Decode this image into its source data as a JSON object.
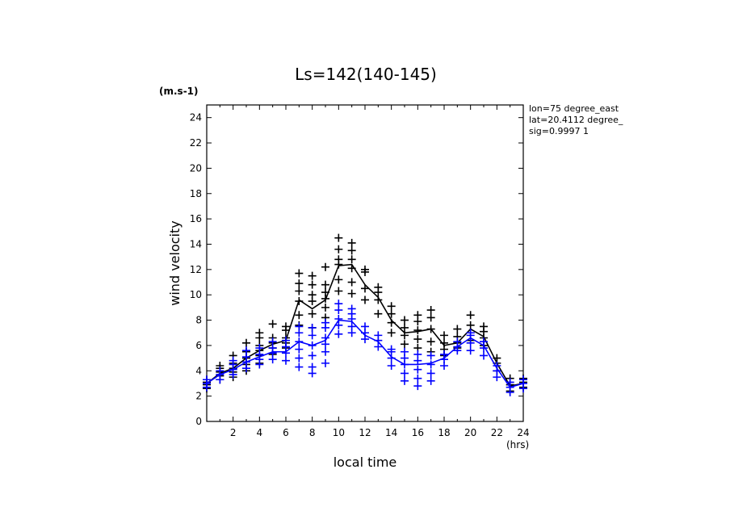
{
  "chart_data": {
    "type": "scatter",
    "title": "Ls=142(140-145)",
    "xlabel": "local time",
    "ylabel": "wind velocity",
    "y_unit": "(m.s-1)",
    "x_unit": "(hrs)",
    "info": [
      "lon=75 degree_east",
      "lat=20.4112 degree_",
      "sig=0.9997 1"
    ],
    "xlim": [
      0,
      24
    ],
    "ylim": [
      0,
      25
    ],
    "xticks": [
      2,
      4,
      6,
      8,
      10,
      12,
      14,
      16,
      18,
      20,
      22,
      24
    ],
    "yticks": [
      0,
      2,
      4,
      6,
      8,
      10,
      12,
      14,
      16,
      18,
      20,
      22,
      24
    ],
    "grid": false,
    "series": [
      {
        "color": "#000000",
        "mean": {
          "x": [
            0,
            1,
            2,
            3,
            4,
            5,
            6,
            7,
            8,
            9,
            10,
            11,
            12,
            13,
            14,
            15,
            16,
            17,
            18,
            19,
            20,
            21,
            22,
            23,
            24
          ],
          "y": [
            3.0,
            3.8,
            4.2,
            5.0,
            5.6,
            6.1,
            6.4,
            9.6,
            8.9,
            9.6,
            12.3,
            12.4,
            10.8,
            9.8,
            8.0,
            7.0,
            7.1,
            7.3,
            6.0,
            6.2,
            7.3,
            6.7,
            4.6,
            2.8,
            3.0
          ]
        },
        "scatter": [
          [
            0,
            [
              2.6,
              2.9,
              3.1,
              3.3
            ]
          ],
          [
            1,
            [
              3.3,
              3.6,
              3.9,
              4.2,
              4.4
            ]
          ],
          [
            2,
            [
              3.5,
              3.9,
              4.2,
              4.6,
              5.2
            ]
          ],
          [
            3,
            [
              4.0,
              4.5,
              5.0,
              5.5,
              6.2
            ]
          ],
          [
            4,
            [
              4.6,
              5.2,
              5.6,
              6.0,
              6.6,
              7.0
            ]
          ],
          [
            5,
            [
              5.3,
              5.8,
              6.2,
              6.6,
              7.7
            ]
          ],
          [
            6,
            [
              5.8,
              6.2,
              6.6,
              7.2,
              7.5
            ]
          ],
          [
            7,
            [
              7.6,
              8.4,
              9.5,
              10.3,
              10.9,
              11.7
            ]
          ],
          [
            8,
            [
              7.4,
              8.5,
              9.5,
              10.0,
              10.8,
              11.5
            ]
          ],
          [
            9,
            [
              8.2,
              9.0,
              9.7,
              10.2,
              10.8,
              12.2
            ]
          ],
          [
            10,
            [
              10.3,
              11.2,
              12.4,
              12.8,
              13.6,
              14.5
            ]
          ],
          [
            11,
            [
              10.1,
              11.0,
              12.1,
              12.8,
              13.5,
              14.1
            ]
          ],
          [
            12,
            [
              9.6,
              10.5,
              11.8,
              12.0
            ]
          ],
          [
            13,
            [
              8.5,
              9.6,
              10.2,
              10.6
            ]
          ],
          [
            14,
            [
              7.0,
              7.8,
              8.5,
              9.1
            ]
          ],
          [
            15,
            [
              6.1,
              6.8,
              7.4,
              8.0
            ]
          ],
          [
            16,
            [
              5.8,
              6.5,
              7.2,
              7.9,
              8.4
            ]
          ],
          [
            17,
            [
              5.5,
              6.3,
              7.3,
              8.2,
              8.8
            ]
          ],
          [
            18,
            [
              5.2,
              5.7,
              6.2,
              6.8
            ]
          ],
          [
            19,
            [
              5.8,
              6.2,
              6.7,
              7.3
            ]
          ],
          [
            20,
            [
              6.4,
              7.0,
              7.6,
              8.4
            ]
          ],
          [
            21,
            [
              6.0,
              6.6,
              7.1,
              7.5
            ]
          ],
          [
            22,
            [
              4.0,
              4.6,
              5.0
            ]
          ],
          [
            23,
            [
              2.4,
              2.9,
              3.4
            ]
          ],
          [
            24,
            [
              2.7,
              3.1,
              3.4
            ]
          ]
        ]
      },
      {
        "color": "#0000ff",
        "mean": {
          "x": [
            0,
            1,
            2,
            3,
            4,
            5,
            6,
            7,
            8,
            9,
            10,
            11,
            12,
            13,
            14,
            15,
            16,
            17,
            18,
            19,
            20,
            21,
            22,
            23,
            24
          ],
          "y": [
            3.0,
            3.7,
            4.1,
            4.7,
            5.1,
            5.5,
            5.5,
            6.3,
            6.0,
            6.4,
            8.0,
            7.9,
            6.8,
            6.3,
            5.1,
            4.5,
            4.5,
            4.6,
            5.0,
            5.9,
            6.6,
            6.0,
            4.2,
            2.7,
            3.0
          ]
        },
        "scatter": [
          [
            0,
            [
              2.7,
              3.0,
              3.3
            ]
          ],
          [
            1,
            [
              3.3,
              3.7,
              4.0
            ]
          ],
          [
            2,
            [
              3.7,
              4.1,
              4.5,
              4.8
            ]
          ],
          [
            3,
            [
              4.2,
              4.7,
              5.1,
              5.6
            ]
          ],
          [
            4,
            [
              4.5,
              4.9,
              5.3,
              5.8
            ]
          ],
          [
            5,
            [
              4.9,
              5.4,
              5.8,
              6.3
            ]
          ],
          [
            6,
            [
              4.8,
              5.4,
              5.9,
              6.4
            ]
          ],
          [
            7,
            [
              4.3,
              5.0,
              5.7,
              6.3,
              7.0,
              7.5
            ]
          ],
          [
            8,
            [
              3.8,
              4.3,
              5.2,
              6.0,
              6.8,
              7.4
            ]
          ],
          [
            9,
            [
              4.6,
              5.5,
              6.1,
              6.6,
              7.4,
              7.8
            ]
          ],
          [
            10,
            [
              6.9,
              7.6,
              8.1,
              8.8,
              9.3
            ]
          ],
          [
            11,
            [
              7.0,
              7.5,
              8.1,
              8.5,
              8.9
            ]
          ],
          [
            12,
            [
              6.5,
              7.0,
              7.5
            ]
          ],
          [
            13,
            [
              5.9,
              6.4,
              6.8
            ]
          ],
          [
            14,
            [
              4.4,
              5.0,
              5.5,
              5.7
            ]
          ],
          [
            15,
            [
              3.2,
              3.8,
              4.5,
              5.0,
              5.5
            ]
          ],
          [
            16,
            [
              2.8,
              3.4,
              4.1,
              4.8,
              5.3
            ]
          ],
          [
            17,
            [
              3.2,
              3.8,
              4.5,
              5.2
            ]
          ],
          [
            18,
            [
              4.4,
              4.9,
              5.3
            ]
          ],
          [
            19,
            [
              5.6,
              5.9,
              6.3
            ]
          ],
          [
            20,
            [
              5.6,
              6.2,
              6.8,
              7.0
            ]
          ],
          [
            21,
            [
              5.2,
              5.8,
              6.3
            ]
          ],
          [
            22,
            [
              3.5,
              4.0,
              4.4
            ]
          ],
          [
            23,
            [
              2.3,
              2.7,
              3.1
            ]
          ],
          [
            24,
            [
              2.6,
              3.0,
              3.3
            ]
          ]
        ]
      }
    ]
  }
}
